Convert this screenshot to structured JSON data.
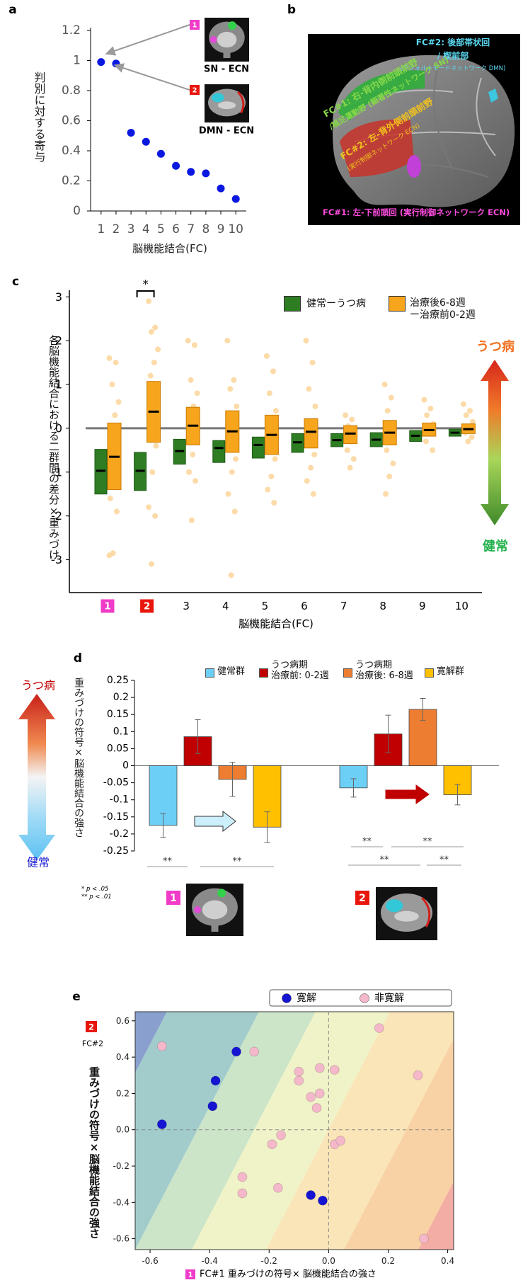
{
  "brain_figure": {
    "panel": "b",
    "labels": [
      {
        "text": "FC#2: 後部帯状回",
        "color": "#5ad7f0"
      },
      {
        "text": "/ 楔前部",
        "color": "#5ad7f0"
      },
      {
        "text": "(デフォルトモードネットワーク DMN)",
        "color": "#5ad7f0"
      },
      {
        "text": "FC#1: 右-背内側前頭前野",
        "color": "#86d84a"
      },
      {
        "text": "/補足運動野 (顕著性ネットワーク SN)",
        "color": "#86d84a"
      },
      {
        "text": "FC#2: 左-背外側前頭前野",
        "color": "#f2c21e"
      },
      {
        "text": "(実行制御ネットワーク ECN)",
        "color": "#f2c21e"
      },
      {
        "text": "FC#1: 左-下前頭回 (実行制御ネットワーク ECN)",
        "color": "#ff4de0"
      }
    ]
  },
  "chart_data": [
    {
      "panel": "a",
      "type": "scatter",
      "ylabel": "判別に対する寄与",
      "xlabel": "脳機能結合(FC)",
      "x": [
        1,
        2,
        3,
        4,
        5,
        6,
        7,
        8,
        9,
        10
      ],
      "values": [
        0.99,
        0.98,
        0.52,
        0.46,
        0.38,
        0.3,
        0.26,
        0.25,
        0.15,
        0.08
      ],
      "color": "#0a18e0",
      "xlim": [
        0.3,
        10.7
      ],
      "xticks": [
        1,
        2,
        3,
        4,
        5,
        6,
        7,
        8,
        9,
        10
      ],
      "ylim": [
        0,
        1.2
      ],
      "yticks": [
        0,
        0.2,
        0.4,
        0.6,
        0.8,
        1,
        1.2
      ],
      "annotations": [
        {
          "badge": "1",
          "color": "#f03cc8",
          "text": "SN - ECN"
        },
        {
          "badge": "2",
          "color": "#e8160c",
          "text": "DMN - ECN"
        }
      ]
    },
    {
      "panel": "c",
      "type": "box",
      "ylabel": "各脳機能結合における二群間の差分×重みづけ",
      "xlabel": "脳機能結合(FC)",
      "categories": [
        "1",
        "2",
        "3",
        "4",
        "5",
        "6",
        "7",
        "8",
        "9",
        "10"
      ],
      "badge_colors": [
        "#f03cc8",
        "#e8160c"
      ],
      "series": [
        {
          "name": "健常ーうつ病",
          "color": "#2e7d23",
          "low": [
            -1.5,
            -1.42,
            -0.82,
            -0.78,
            -0.68,
            -0.55,
            -0.42,
            -0.42,
            -0.3,
            -0.18
          ],
          "median": [
            -0.97,
            -0.97,
            -0.52,
            -0.45,
            -0.38,
            -0.32,
            -0.27,
            -0.26,
            -0.17,
            -0.1
          ],
          "high": [
            -0.48,
            -0.55,
            -0.25,
            -0.28,
            -0.2,
            -0.12,
            -0.12,
            -0.1,
            -0.05,
            -0.02
          ]
        },
        {
          "name": "治療後6-8週\nー治療前0-2週",
          "color": "#f7a51c",
          "low": [
            -1.4,
            -0.32,
            -0.38,
            -0.55,
            -0.6,
            -0.45,
            -0.35,
            -0.38,
            -0.18,
            -0.12
          ],
          "median": [
            -0.65,
            0.38,
            0.06,
            -0.07,
            -0.15,
            -0.08,
            -0.12,
            -0.1,
            -0.04,
            -0.02
          ],
          "high": [
            0.12,
            1.07,
            0.48,
            0.4,
            0.3,
            0.22,
            0.06,
            0.18,
            0.12,
            0.1
          ]
        }
      ],
      "points_color": "#fbd59a",
      "points": [
        [
          1.6,
          1.5,
          1.0,
          0.6,
          0.3,
          -0.2,
          -0.6,
          -1.1,
          -1.6,
          -1.9,
          -2.85,
          -2.9
        ],
        [
          2.9,
          2.3,
          2.2,
          1.8,
          1.5,
          1.2,
          0.9,
          0.5,
          0.0,
          -0.4,
          -1.0,
          -1.8,
          -2.0,
          -3.1
        ],
        [
          2.0,
          1.9,
          1.1,
          0.8,
          0.5,
          0.2,
          -0.3,
          -0.6,
          -1.0,
          -1.2,
          -2.1
        ],
        [
          2.0,
          1.1,
          0.9,
          0.5,
          0.1,
          -0.3,
          -0.7,
          -1.0,
          -1.5,
          -1.9,
          -3.35
        ],
        [
          1.65,
          1.3,
          0.8,
          0.4,
          0.0,
          -0.4,
          -0.7,
          -1.1,
          -1.4,
          -1.7
        ],
        [
          2.0,
          1.5,
          0.9,
          0.5,
          0.1,
          -0.3,
          -0.6,
          -0.9,
          -1.2,
          -1.5
        ],
        [
          0.3,
          0.2,
          0.05,
          -0.1,
          -0.3,
          -0.5,
          -0.7,
          -0.9
        ],
        [
          1.0,
          0.7,
          0.4,
          0.1,
          -0.2,
          -0.5,
          -0.8,
          -1.1,
          -1.5
        ],
        [
          0.65,
          0.45,
          0.3,
          0.1,
          -0.1,
          -0.3,
          -0.5
        ],
        [
          0.55,
          0.4,
          0.3,
          0.15,
          0,
          -0.1,
          -0.2,
          -0.3
        ]
      ],
      "ylim": [
        -3.75,
        3.15
      ],
      "yticks": [
        -3,
        -2,
        -1,
        0,
        1,
        2,
        3
      ],
      "significance": "*",
      "scale_top": "うつ病",
      "scale_bottom": "健常"
    },
    {
      "panel": "d",
      "type": "bar",
      "ylabel": "重みづけの符号×脳機能結合の強さ",
      "categories": [
        "1",
        "2"
      ],
      "badge_colors": [
        "#f03cc8",
        "#e8160c"
      ],
      "series": [
        {
          "name": "健常群",
          "color": "#6ccff6",
          "values": [
            -0.175,
            -0.065
          ],
          "errors": [
            0.035,
            0.027
          ]
        },
        {
          "name": "うつ病期\n治療前: 0-2週",
          "color": "#c00000",
          "values": [
            0.085,
            0.093
          ],
          "errors": [
            0.05,
            0.055
          ]
        },
        {
          "name": "うつ病期\n治療後: 6-8週",
          "color": "#ed7d31",
          "values": [
            -0.04,
            0.165
          ],
          "errors": [
            0.05,
            0.032
          ]
        },
        {
          "name": "寛解群",
          "color": "#ffc000",
          "values": [
            -0.18,
            -0.085
          ],
          "errors": [
            0.045,
            0.03
          ]
        }
      ],
      "ylim": [
        -0.25,
        0.25
      ],
      "yticks": [
        -0.25,
        -0.2,
        -0.15,
        -0.1,
        -0.05,
        0,
        0.05,
        0.1,
        0.15,
        0.2,
        0.25
      ],
      "significance": [
        "**",
        "**",
        "**",
        "**",
        "**",
        "**"
      ],
      "footnotes": [
        "* p < .05",
        "** p < .01"
      ],
      "scale_top": "うつ病",
      "scale_bottom": "健常"
    },
    {
      "panel": "e",
      "type": "scatter",
      "ylabel": "重みづけの符号×脳機能結合の強さ",
      "xlabel": "FC#1 重みづけの符号× 脳機能結合の強さ",
      "x_badge": {
        "label": "1",
        "color": "#f03cc8"
      },
      "y_badge": {
        "label": "2",
        "color": "#e8160c"
      },
      "y_badge_text": "FC#2",
      "series": [
        {
          "name": "寛解",
          "color": "#1414d2",
          "x": [
            -0.56,
            -0.38,
            -0.39,
            -0.31,
            -0.06,
            -0.02
          ],
          "values": [
            0.03,
            0.27,
            0.13,
            0.43,
            -0.36,
            -0.39
          ]
        },
        {
          "name": "非寛解",
          "color": "#f5b8cb",
          "x": [
            -0.56,
            -0.29,
            -0.29,
            -0.25,
            -0.19,
            -0.16,
            -0.17,
            -0.1,
            -0.1,
            -0.06,
            -0.04,
            -0.03,
            -0.03,
            0.02,
            0.02,
            0.04,
            0.17,
            0.3,
            0.32
          ],
          "values": [
            0.46,
            -0.26,
            -0.35,
            0.43,
            -0.08,
            -0.03,
            -0.32,
            0.32,
            0.27,
            0.18,
            0.12,
            0.2,
            0.34,
            0.33,
            -0.08,
            -0.06,
            0.56,
            0.3,
            -0.6
          ]
        }
      ],
      "xlim": [
        -0.65,
        0.42
      ],
      "xticks": [
        -0.6,
        -0.4,
        -0.2,
        {
          "value": 0,
          "label": "0.0"
        },
        0.2,
        0.4
      ],
      "ylim": [
        -0.66,
        0.65
      ],
      "yticks": [
        -0.6,
        -0.4,
        -0.2,
        {
          "value": 0,
          "label": "0.0"
        },
        0.2,
        0.4,
        0.6
      ]
    }
  ]
}
